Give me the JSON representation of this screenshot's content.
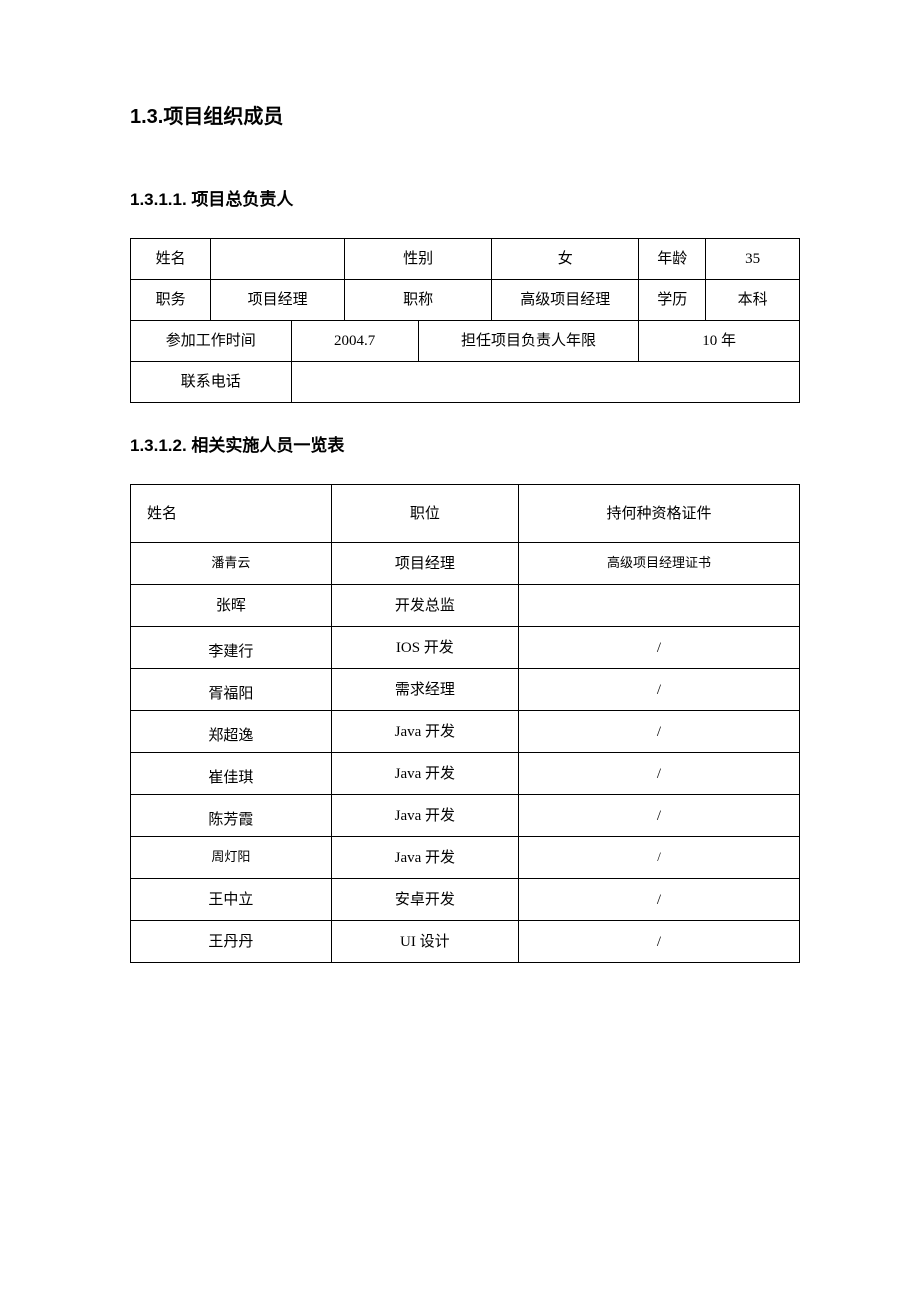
{
  "headings": {
    "h1": "1.3.项目组织成员",
    "h2a": "1.3.1.1. 项目总负责人",
    "h2b": "1.3.1.2. 相关实施人员一览表"
  },
  "table1": {
    "labels": {
      "name": "姓名",
      "gender": "性别",
      "age": "年龄",
      "position": "职务",
      "title": "职称",
      "education": "学历",
      "work_start": "参加工作时间",
      "lead_years": "担任项目负责人年限",
      "phone": "联系电话"
    },
    "values": {
      "name": "",
      "gender": "女",
      "age": "35",
      "position": "项目经理",
      "title": "高级项目经理",
      "education": "本科",
      "work_start": "2004.7",
      "lead_years": "10 年",
      "phone": ""
    }
  },
  "table2": {
    "columns": [
      "姓名",
      "职位",
      "持何种资格证件"
    ],
    "rows": [
      {
        "name": "潘青云",
        "pos": "项目经理",
        "cert": "高级项目经理证书",
        "small": true,
        "name_bottom": false
      },
      {
        "name": "张晖",
        "pos": "开发总监",
        "cert": "",
        "small": false,
        "name_bottom": false
      },
      {
        "name": "李建行",
        "pos": "IOS 开发",
        "cert": "/",
        "small": false,
        "name_bottom": true
      },
      {
        "name": "胥福阳",
        "pos": "需求经理",
        "cert": "/",
        "small": false,
        "name_bottom": true
      },
      {
        "name": "郑超逸",
        "pos": "Java 开发",
        "cert": "/",
        "small": false,
        "name_bottom": true
      },
      {
        "name": "崔佳琪",
        "pos": "Java 开发",
        "cert": "/",
        "small": false,
        "name_bottom": true
      },
      {
        "name": "陈芳霞",
        "pos": "Java 开发",
        "cert": "/",
        "small": false,
        "name_bottom": true
      },
      {
        "name": "周灯阳",
        "pos": "Java 开发",
        "cert": "/",
        "small": true,
        "name_bottom": false
      },
      {
        "name": "王中立",
        "pos": "安卓开发",
        "cert": "/",
        "small": false,
        "name_bottom": false
      },
      {
        "name": "王丹丹",
        "pos": "UI 设计",
        "cert": "/",
        "small": false,
        "name_bottom": false
      }
    ]
  },
  "style": {
    "border_color": "#000000",
    "background_color": "#ffffff",
    "text_color": "#000000",
    "h1_fontsize": 20,
    "h2_fontsize": 17,
    "cell_fontsize": 15,
    "small_fontsize": 13
  }
}
